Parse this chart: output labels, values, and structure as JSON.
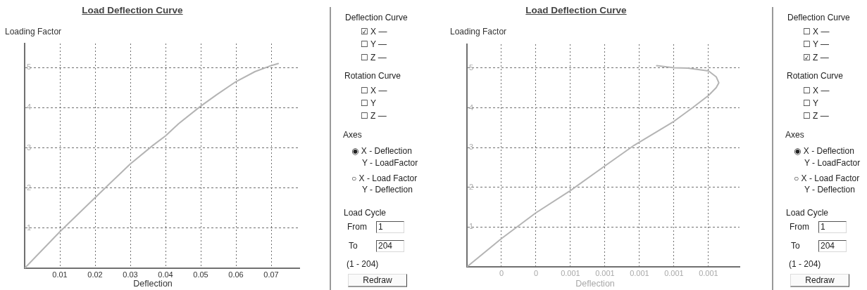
{
  "chart_data": [
    {
      "type": "line",
      "title": "Load Deflection Curve",
      "xlabel": "Deflection",
      "ylabel": "Loading Factor",
      "x": [
        0,
        0.01,
        0.02,
        0.03,
        0.0364,
        0.04,
        0.0437,
        0.05,
        0.0546,
        0.06,
        0.0654,
        0.07,
        0.072
      ],
      "values": [
        0,
        0.91,
        1.76,
        2.6,
        3.06,
        3.3,
        3.6,
        4.04,
        4.33,
        4.65,
        4.9,
        5.05,
        5.1
      ],
      "color": "#b4b4b4",
      "xlim": [
        0,
        0.078
      ],
      "ylim": [
        0,
        5.6
      ],
      "xticks": [
        0.01,
        0.02,
        0.03,
        0.04,
        0.05,
        0.06,
        0.07
      ],
      "yticks": [
        1,
        2,
        3,
        4,
        5
      ],
      "grid": true,
      "marker": "none",
      "line_style": "solid"
    },
    {
      "type": "other",
      "annotations": [
        "Deflection Curve",
        "☑ X —",
        "☐ Y —",
        "☐ Z —",
        "Rotation Curve",
        "☐ X —",
        "☐ Y",
        "☐ Z —",
        "Axes",
        "◉ X - Deflection",
        "Y - LoadFactor",
        "○ X - Load Factor",
        "Y - Deflection",
        "Load Cycle",
        "From",
        "1",
        "To",
        "204",
        "(1 - 204)",
        "Redraw"
      ]
    },
    {
      "type": "line",
      "title": "Load Deflection Curve",
      "xlabel": "Deflection",
      "ylabel": "Loading Factor",
      "x": [
        0,
        0.0002,
        0.0004,
        0.0006,
        0.0008,
        0.00097,
        0.0012,
        0.00131,
        0.0014,
        0.001445,
        0.00146,
        0.001445,
        0.0014,
        0.00128,
        0.0012,
        0.0011
      ],
      "values": [
        0,
        0.71,
        1.36,
        1.92,
        2.54,
        3.06,
        3.66,
        4.01,
        4.31,
        4.51,
        4.63,
        4.78,
        4.93,
        5.0,
        5.01,
        5.06
      ],
      "color": "#b4b4b4",
      "xlim": [
        0,
        0.00158
      ],
      "ylim": [
        0,
        5.6
      ],
      "xticks": [
        {
          "value": 0.0002,
          "label": "0"
        },
        {
          "value": 0.0004,
          "label": "0"
        },
        {
          "value": 0.0006,
          "label": "0.001"
        },
        {
          "value": 0.0008,
          "label": "0.001"
        },
        {
          "value": 0.001,
          "label": "0.001"
        },
        {
          "value": 0.0012,
          "label": "0.001"
        },
        {
          "value": 0.0014,
          "label": "0.001"
        }
      ],
      "yticks": [
        1,
        2,
        3,
        4,
        5
      ],
      "grid": true,
      "marker": "none",
      "line_style": "solid"
    },
    {
      "type": "other",
      "annotations": [
        "Deflection Curve",
        "☐ X —",
        "☐ Y —",
        "☑ Z —",
        "Rotation Curve",
        "☐ X —",
        "☐ Y",
        "☐ Z —",
        "Axes",
        "◉ X - Deflection",
        "Y - LoadFactor",
        "○ X - Load Factor",
        "Y - Deflection",
        "Load Cycle",
        "From",
        "1",
        "To",
        "204",
        "(1 - 204)",
        "Redraw"
      ]
    }
  ]
}
